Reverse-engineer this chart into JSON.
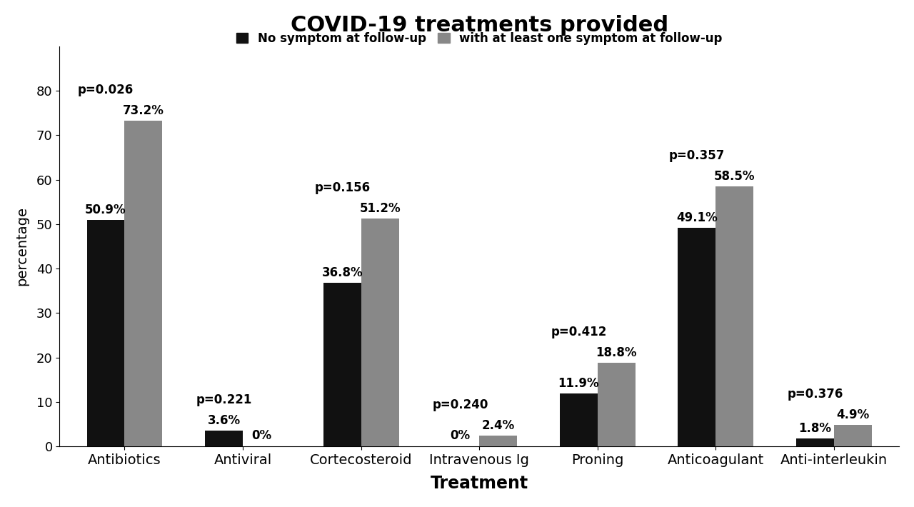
{
  "title": "COVID-19 treatments provided",
  "xlabel": "Treatment",
  "ylabel": "percentage",
  "categories": [
    "Antibiotics",
    "Antiviral",
    "Cortecosteroid",
    "Intravenous Ig",
    "Proning",
    "Anticoagulant",
    "Anti-interleukin"
  ],
  "no_symptom": [
    50.9,
    3.6,
    36.8,
    0.0,
    11.9,
    49.1,
    1.8
  ],
  "with_symptom": [
    73.2,
    0.0,
    51.2,
    2.4,
    18.8,
    58.5,
    4.9
  ],
  "p_values": [
    "p=0.026",
    "p=0.221",
    "p=0.156",
    "p=0.240",
    "p=0.412",
    "p=0.357",
    "p=0.376"
  ],
  "no_symptom_labels": [
    "50.9%",
    "3.6%",
    "36.8%",
    "0%",
    "11.9%",
    "49.1%",
    "1.8%"
  ],
  "with_symptom_labels": [
    "73.2%",
    "0%",
    "51.2%",
    "2.4%",
    "18.8%",
    "58.5%",
    "4.9%"
  ],
  "bar_color_black": "#111111",
  "bar_color_gray": "#888888",
  "ylim": [
    0,
    90
  ],
  "yticks": [
    0,
    10,
    20,
    30,
    40,
    50,
    60,
    70,
    80
  ],
  "legend_label_black": "No symptom at follow-up",
  "legend_label_gray": "with at least one symptom at follow-up",
  "title_fontsize": 22,
  "axis_label_fontsize": 14,
  "tick_fontsize": 13,
  "bar_label_fontsize": 12,
  "p_value_fontsize": 12,
  "legend_fontsize": 12,
  "bar_width": 0.32,
  "background_color": "#ffffff"
}
